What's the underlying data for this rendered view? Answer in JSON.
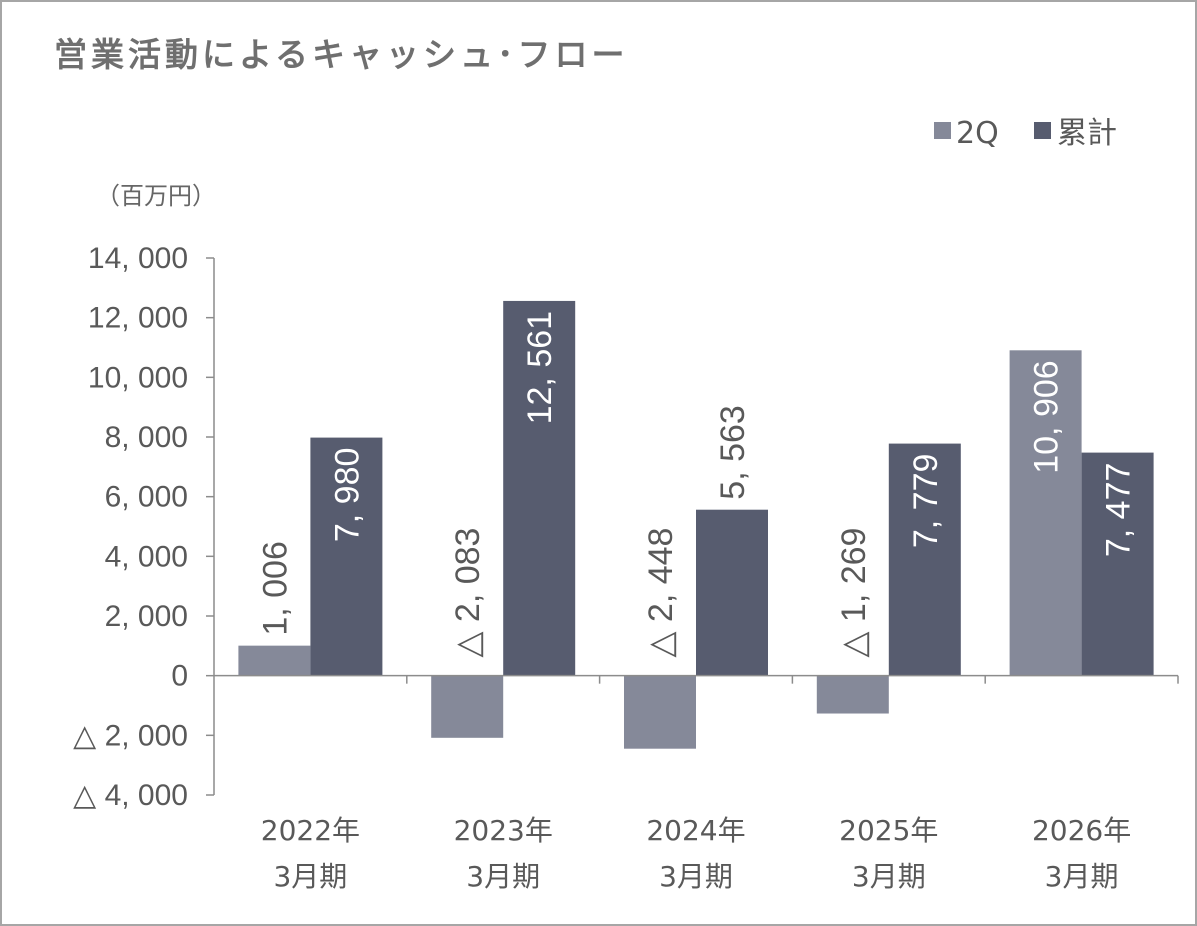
{
  "chart_data": {
    "type": "bar",
    "title": "営業活動によるキャッシュ･フロー",
    "unit_label": "（百万円）",
    "categories": [
      {
        "year": "2022年",
        "period": "3月期"
      },
      {
        "year": "2023年",
        "period": "3月期"
      },
      {
        "year": "2024年",
        "period": "3月期"
      },
      {
        "year": "2025年",
        "period": "3月期"
      },
      {
        "year": "2026年",
        "period": "3月期"
      }
    ],
    "series": [
      {
        "name": "2Q",
        "color": "#858999",
        "values": [
          1006,
          -2083,
          -2448,
          -1269,
          10906
        ],
        "labels": [
          "1, 006",
          "△ 2, 083",
          "△ 2, 448",
          "△ 1, 269",
          "10, 906"
        ]
      },
      {
        "name": "累計",
        "color": "#575c6f",
        "values": [
          7980,
          12561,
          5563,
          7779,
          7477
        ],
        "labels": [
          "7, 980",
          "12, 561",
          "5, 563",
          "7, 779",
          "7, 477"
        ]
      }
    ],
    "ylim": [
      -4000,
      14000
    ],
    "yticks": [
      {
        "value": 14000,
        "label": "14, 000"
      },
      {
        "value": 12000,
        "label": "12, 000"
      },
      {
        "value": 10000,
        "label": "10, 000"
      },
      {
        "value": 8000,
        "label": "8, 000"
      },
      {
        "value": 6000,
        "label": "6, 000"
      },
      {
        "value": 4000,
        "label": "4, 000"
      },
      {
        "value": 2000,
        "label": "2, 000"
      },
      {
        "value": 0,
        "label": "0"
      },
      {
        "value": -2000,
        "label": "△  2, 000"
      },
      {
        "value": -4000,
        "label": "△  4, 000"
      }
    ],
    "legend_position": "top-right",
    "grid": false
  }
}
